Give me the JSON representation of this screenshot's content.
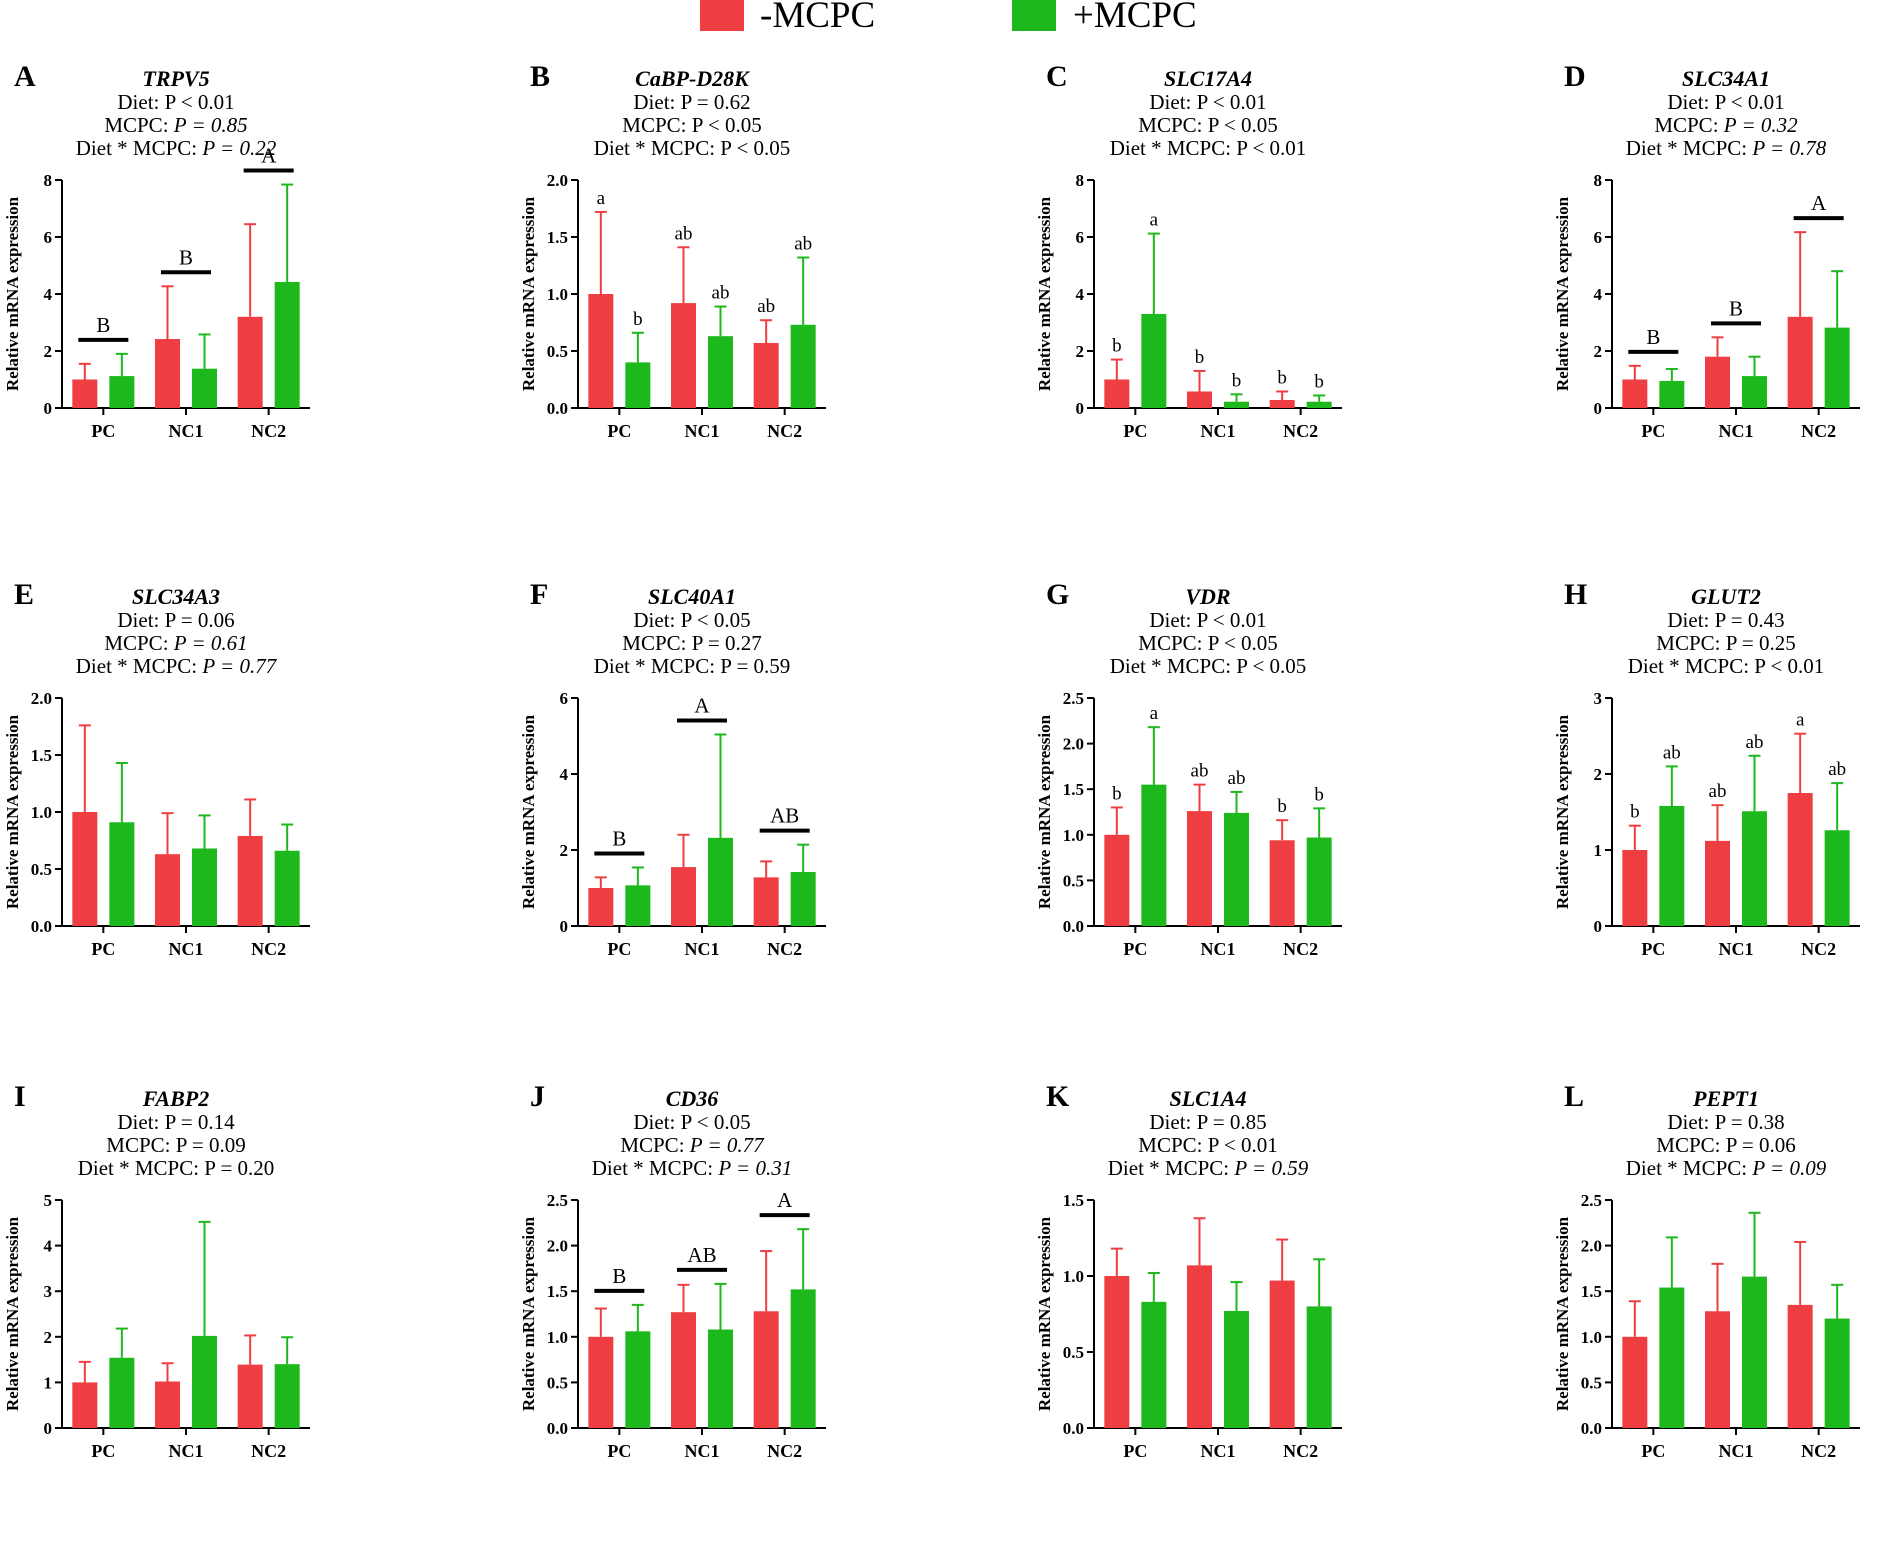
{
  "legend": {
    "items": [
      {
        "label": "-MCPC",
        "color": "#ef3e42"
      },
      {
        "label": "+MCPC",
        "color": "#1cb81c"
      }
    ]
  },
  "colors": {
    "minus": "#ef3e42",
    "plus": "#1cb81c"
  },
  "chart_data": [
    {
      "type": "bar",
      "letter": "A",
      "gene": "TRPV5",
      "stats": [
        {
          "prefix": "Diet: ",
          "p": "P < 0.01",
          "italic": false
        },
        {
          "prefix": "MCPC: ",
          "p": "P = 0.85",
          "italic": true
        },
        {
          "prefix": "Diet * MCPC: ",
          "p": "P = 0.22",
          "italic": true
        }
      ],
      "ylabel": "Relative mRNA expression",
      "ylim": [
        0,
        8
      ],
      "yticks": [
        "0",
        "2",
        "4",
        "6",
        "8"
      ],
      "categories": [
        "PC",
        "NC1",
        "NC2"
      ],
      "series": [
        {
          "name": "-MCPC",
          "values": [
            1.0,
            2.42,
            3.2
          ],
          "errors": [
            0.55,
            1.85,
            3.25
          ],
          "sig": [
            "",
            "",
            ""
          ]
        },
        {
          "name": "+MCPC",
          "values": [
            1.12,
            1.38,
            4.42
          ],
          "errors": [
            0.78,
            1.2,
            3.42
          ],
          "sig": [
            "",
            "",
            ""
          ]
        }
      ],
      "group_sig": [
        "B",
        "B",
        "A"
      ]
    },
    {
      "type": "bar",
      "letter": "B",
      "gene": "CaBP-D28K",
      "stats": [
        {
          "prefix": "Diet: ",
          "p": "P = 0.62",
          "italic": false
        },
        {
          "prefix": "MCPC: ",
          "p": "P < 0.05",
          "italic": false
        },
        {
          "prefix": "Diet * MCPC: ",
          "p": "P < 0.05",
          "italic": false
        }
      ],
      "ylabel": "Relative mRNA expression",
      "ylim": [
        0,
        2
      ],
      "yticks": [
        "0.0",
        "0.5",
        "1.0",
        "1.5",
        "2.0"
      ],
      "categories": [
        "PC",
        "NC1",
        "NC2"
      ],
      "series": [
        {
          "name": "-MCPC",
          "values": [
            1.0,
            0.92,
            0.57
          ],
          "errors": [
            0.72,
            0.49,
            0.2
          ],
          "sig": [
            "a",
            "ab",
            "ab"
          ]
        },
        {
          "name": "+MCPC",
          "values": [
            0.4,
            0.63,
            0.73
          ],
          "errors": [
            0.26,
            0.26,
            0.59
          ],
          "sig": [
            "b",
            "ab",
            "ab"
          ]
        }
      ],
      "group_sig": [
        "",
        "",
        ""
      ]
    },
    {
      "type": "bar",
      "letter": "C",
      "gene": "SLC17A4",
      "stats": [
        {
          "prefix": "Diet: ",
          "p": "P < 0.01",
          "italic": false
        },
        {
          "prefix": "MCPC: ",
          "p": "P < 0.05",
          "italic": false
        },
        {
          "prefix": "Diet * MCPC: ",
          "p": "P < 0.01",
          "italic": false
        }
      ],
      "ylabel": "Relative mRNA expression",
      "ylim": [
        0,
        8
      ],
      "yticks": [
        "0",
        "2",
        "4",
        "6",
        "8"
      ],
      "categories": [
        "PC",
        "NC1",
        "NC2"
      ],
      "series": [
        {
          "name": "-MCPC",
          "values": [
            1.0,
            0.58,
            0.28
          ],
          "errors": [
            0.7,
            0.72,
            0.3
          ],
          "sig": [
            "b",
            "b",
            "b"
          ]
        },
        {
          "name": "+MCPC",
          "values": [
            3.3,
            0.22,
            0.22
          ],
          "errors": [
            2.82,
            0.26,
            0.22
          ],
          "sig": [
            "a",
            "b",
            "b"
          ]
        }
      ],
      "group_sig": [
        "",
        "",
        ""
      ]
    },
    {
      "type": "bar",
      "letter": "D",
      "gene": "SLC34A1",
      "stats": [
        {
          "prefix": "Diet: ",
          "p": "P < 0.01",
          "italic": false
        },
        {
          "prefix": "MCPC: ",
          "p": "P = 0.32",
          "italic": true
        },
        {
          "prefix": "Diet * MCPC: ",
          "p": "P = 0.78",
          "italic": true
        }
      ],
      "ylabel": "Relative mRNA expression",
      "ylim": [
        0,
        8
      ],
      "yticks": [
        "0",
        "2",
        "4",
        "6",
        "8"
      ],
      "categories": [
        "PC",
        "NC1",
        "NC2"
      ],
      "series": [
        {
          "name": "-MCPC",
          "values": [
            1.0,
            1.8,
            3.2
          ],
          "errors": [
            0.48,
            0.68,
            2.97
          ],
          "sig": [
            "",
            "",
            ""
          ]
        },
        {
          "name": "+MCPC",
          "values": [
            0.95,
            1.12,
            2.82
          ],
          "errors": [
            0.42,
            0.68,
            1.98
          ],
          "sig": [
            "",
            "",
            ""
          ]
        }
      ],
      "group_sig": [
        "B",
        "B",
        "A"
      ]
    },
    {
      "type": "bar",
      "letter": "E",
      "gene": "SLC34A3",
      "stats": [
        {
          "prefix": "Diet: ",
          "p": "P = 0.06",
          "italic": false
        },
        {
          "prefix": "MCPC: ",
          "p": "P = 0.61",
          "italic": true
        },
        {
          "prefix": "Diet * MCPC: ",
          "p": "P = 0.77",
          "italic": true
        }
      ],
      "ylabel": "Relative mRNA expression",
      "ylim": [
        0,
        2
      ],
      "yticks": [
        "0.0",
        "0.5",
        "1.0",
        "1.5",
        "2.0"
      ],
      "categories": [
        "PC",
        "NC1",
        "NC2"
      ],
      "series": [
        {
          "name": "-MCPC",
          "values": [
            1.0,
            0.63,
            0.79
          ],
          "errors": [
            0.76,
            0.36,
            0.32
          ],
          "sig": [
            "",
            "",
            ""
          ]
        },
        {
          "name": "+MCPC",
          "values": [
            0.91,
            0.68,
            0.66
          ],
          "errors": [
            0.52,
            0.29,
            0.23
          ],
          "sig": [
            "",
            "",
            ""
          ]
        }
      ],
      "group_sig": [
        "",
        "",
        ""
      ]
    },
    {
      "type": "bar",
      "letter": "F",
      "gene": "SLC40A1",
      "stats": [
        {
          "prefix": "Diet: ",
          "p": "P < 0.05",
          "italic": false
        },
        {
          "prefix": "MCPC: ",
          "p": "P = 0.27",
          "italic": false
        },
        {
          "prefix": "Diet * MCPC: ",
          "p": "P = 0.59",
          "italic": false
        }
      ],
      "ylabel": "Relative mRNA expression",
      "ylim": [
        0,
        6
      ],
      "yticks": [
        "0",
        "2",
        "4",
        "6"
      ],
      "categories": [
        "PC",
        "NC1",
        "NC2"
      ],
      "series": [
        {
          "name": "-MCPC",
          "values": [
            1.0,
            1.55,
            1.28
          ],
          "errors": [
            0.28,
            0.85,
            0.42
          ],
          "sig": [
            "",
            "",
            ""
          ]
        },
        {
          "name": "+MCPC",
          "values": [
            1.07,
            2.32,
            1.42
          ],
          "errors": [
            0.47,
            2.72,
            0.72
          ],
          "sig": [
            "",
            "",
            ""
          ]
        }
      ],
      "group_sig": [
        "B",
        "A",
        "AB"
      ]
    },
    {
      "type": "bar",
      "letter": "G",
      "gene": "VDR",
      "stats": [
        {
          "prefix": "Diet: ",
          "p": "P < 0.01",
          "italic": false
        },
        {
          "prefix": "MCPC: ",
          "p": "P < 0.05",
          "italic": false
        },
        {
          "prefix": "Diet * MCPC: ",
          "p": "P < 0.05",
          "italic": false
        }
      ],
      "ylabel": "Relative mRNA expression",
      "ylim": [
        0,
        2.5
      ],
      "yticks": [
        "0.0",
        "0.5",
        "1.0",
        "1.5",
        "2.0",
        "2.5"
      ],
      "categories": [
        "PC",
        "NC1",
        "NC2"
      ],
      "series": [
        {
          "name": "-MCPC",
          "values": [
            1.0,
            1.26,
            0.94
          ],
          "errors": [
            0.3,
            0.29,
            0.22
          ],
          "sig": [
            "b",
            "ab",
            "b"
          ]
        },
        {
          "name": "+MCPC",
          "values": [
            1.55,
            1.24,
            0.97
          ],
          "errors": [
            0.63,
            0.23,
            0.32
          ],
          "sig": [
            "a",
            "ab",
            "b"
          ]
        }
      ],
      "group_sig": [
        "",
        "",
        ""
      ]
    },
    {
      "type": "bar",
      "letter": "H",
      "gene": "GLUT2",
      "stats": [
        {
          "prefix": "Diet: ",
          "p": "P = 0.43",
          "italic": false
        },
        {
          "prefix": "MCPC: ",
          "p": "P = 0.25",
          "italic": false
        },
        {
          "prefix": "Diet * MCPC: ",
          "p": "P < 0.01",
          "italic": false
        }
      ],
      "ylabel": "Relative mRNA expression",
      "ylim": [
        0,
        3
      ],
      "yticks": [
        "0",
        "1",
        "2",
        "3"
      ],
      "categories": [
        "PC",
        "NC1",
        "NC2"
      ],
      "series": [
        {
          "name": "-MCPC",
          "values": [
            1.0,
            1.12,
            1.75
          ],
          "errors": [
            0.32,
            0.47,
            0.78
          ],
          "sig": [
            "b",
            "ab",
            "a"
          ]
        },
        {
          "name": "+MCPC",
          "values": [
            1.58,
            1.51,
            1.26
          ],
          "errors": [
            0.52,
            0.73,
            0.62
          ],
          "sig": [
            "ab",
            "ab",
            "ab"
          ]
        }
      ],
      "group_sig": [
        "",
        "",
        ""
      ]
    },
    {
      "type": "bar",
      "letter": "I",
      "gene": "FABP2",
      "stats": [
        {
          "prefix": "Diet: ",
          "p": "P = 0.14",
          "italic": false
        },
        {
          "prefix": "MCPC: ",
          "p": "P = 0.09",
          "italic": false
        },
        {
          "prefix": "Diet * MCPC: ",
          "p": "P = 0.20",
          "italic": false
        }
      ],
      "ylabel": "Relative mRNA expression",
      "ylim": [
        0,
        5
      ],
      "yticks": [
        "0",
        "1",
        "2",
        "3",
        "4",
        "5"
      ],
      "categories": [
        "PC",
        "NC1",
        "NC2"
      ],
      "series": [
        {
          "name": "-MCPC",
          "values": [
            1.0,
            1.02,
            1.39
          ],
          "errors": [
            0.45,
            0.4,
            0.64
          ],
          "sig": [
            "",
            "",
            ""
          ]
        },
        {
          "name": "+MCPC",
          "values": [
            1.54,
            2.02,
            1.4
          ],
          "errors": [
            0.64,
            2.5,
            0.59
          ],
          "sig": [
            "",
            "",
            ""
          ]
        }
      ],
      "group_sig": [
        "",
        "",
        ""
      ]
    },
    {
      "type": "bar",
      "letter": "J",
      "gene": "CD36",
      "stats": [
        {
          "prefix": "Diet: ",
          "p": "P < 0.05",
          "italic": false
        },
        {
          "prefix": "MCPC: ",
          "p": "P = 0.77",
          "italic": true
        },
        {
          "prefix": "Diet * MCPC: ",
          "p": "P = 0.31",
          "italic": true
        }
      ],
      "ylabel": "Relative mRNA expression",
      "ylim": [
        0,
        2.5
      ],
      "yticks": [
        "0.0",
        "0.5",
        "1.0",
        "1.5",
        "2.0",
        "2.5"
      ],
      "categories": [
        "PC",
        "NC1",
        "NC2"
      ],
      "series": [
        {
          "name": "-MCPC",
          "values": [
            1.0,
            1.27,
            1.28
          ],
          "errors": [
            0.31,
            0.3,
            0.66
          ],
          "sig": [
            "",
            "",
            ""
          ]
        },
        {
          "name": "+MCPC",
          "values": [
            1.06,
            1.08,
            1.52
          ],
          "errors": [
            0.29,
            0.5,
            0.66
          ],
          "sig": [
            "",
            "",
            ""
          ]
        }
      ],
      "group_sig": [
        "B",
        "AB",
        "A"
      ]
    },
    {
      "type": "bar",
      "letter": "K",
      "gene": "SLC1A4",
      "stats": [
        {
          "prefix": "Diet: ",
          "p": "P = 0.85",
          "italic": false
        },
        {
          "prefix": "MCPC: ",
          "p": "P < 0.01",
          "italic": false
        },
        {
          "prefix": "Diet * MCPC: ",
          "p": "P = 0.59",
          "italic": true
        }
      ],
      "ylabel": "Relative mRNA expression",
      "ylim": [
        0,
        1.5
      ],
      "yticks": [
        "0.0",
        "0.5",
        "1.0",
        "1.5"
      ],
      "categories": [
        "PC",
        "NC1",
        "NC2"
      ],
      "series": [
        {
          "name": "-MCPC",
          "values": [
            1.0,
            1.07,
            0.97
          ],
          "errors": [
            0.18,
            0.31,
            0.27
          ],
          "sig": [
            "",
            "",
            ""
          ]
        },
        {
          "name": "+MCPC",
          "values": [
            0.83,
            0.77,
            0.8
          ],
          "errors": [
            0.19,
            0.19,
            0.31
          ],
          "sig": [
            "",
            "",
            ""
          ]
        }
      ],
      "group_sig": [
        "",
        "",
        ""
      ]
    },
    {
      "type": "bar",
      "letter": "L",
      "gene": "PEPT1",
      "stats": [
        {
          "prefix": "Diet: ",
          "p": "P = 0.38",
          "italic": false
        },
        {
          "prefix": "MCPC: ",
          "p": "P = 0.06",
          "italic": false
        },
        {
          "prefix": "Diet * MCPC: ",
          "p": "P = 0.09",
          "italic": true
        }
      ],
      "ylabel": "Relative mRNA expression",
      "ylim": [
        0,
        2.5
      ],
      "yticks": [
        "0.0",
        "0.5",
        "1.0",
        "1.5",
        "2.0",
        "2.5"
      ],
      "categories": [
        "PC",
        "NC1",
        "NC2"
      ],
      "series": [
        {
          "name": "-MCPC",
          "values": [
            1.0,
            1.28,
            1.35
          ],
          "errors": [
            0.39,
            0.52,
            0.69
          ],
          "sig": [
            "",
            "",
            ""
          ]
        },
        {
          "name": "+MCPC",
          "values": [
            1.54,
            1.66,
            1.2
          ],
          "errors": [
            0.55,
            0.7,
            0.37
          ],
          "sig": [
            "",
            "",
            ""
          ]
        }
      ],
      "group_sig": [
        "",
        "",
        ""
      ]
    }
  ]
}
